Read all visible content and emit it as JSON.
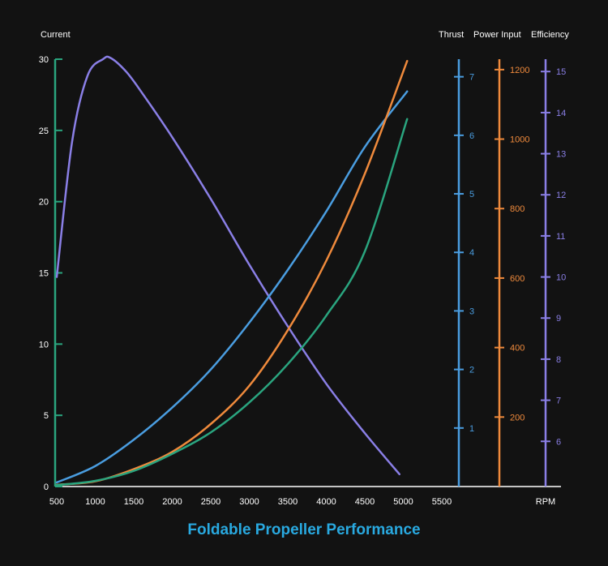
{
  "chart_data": {
    "type": "line",
    "title": "Foldable Propeller Performance",
    "x_label": "RPM",
    "x_ticks": [
      500,
      1000,
      1500,
      2000,
      2500,
      3000,
      3500,
      4000,
      4500,
      5000,
      5500
    ],
    "x_range": [
      500,
      5500
    ],
    "axes": {
      "current": {
        "label": "Current",
        "range": [
          0,
          30
        ],
        "ticks": [
          0,
          5,
          10,
          15,
          20,
          25,
          30
        ],
        "color": "#2aa57f"
      },
      "thrust": {
        "label": "Thrust",
        "range": [
          0,
          7.3
        ],
        "ticks": [
          1,
          2,
          3,
          4,
          5,
          6,
          7
        ],
        "color": "#4a9de0"
      },
      "power": {
        "label": "Power Input",
        "range": [
          0,
          1230
        ],
        "ticks": [
          200,
          400,
          600,
          800,
          1000,
          1200
        ],
        "color": "#ef8a3c"
      },
      "efficiency": {
        "label": "Efficiency",
        "range": [
          4.9,
          15.3
        ],
        "ticks": [
          6,
          7,
          8,
          9,
          10,
          11,
          12,
          13,
          14,
          15
        ],
        "color": "#8a7fe6"
      }
    },
    "series": [
      {
        "name": "Efficiency",
        "axis": "efficiency",
        "color": "#8a7fe6",
        "x": [
          500,
          700,
          900,
          1100,
          1200,
          1400,
          1600,
          2000,
          2500,
          3000,
          3500,
          4000,
          4500,
          4950
        ],
        "y": [
          10.0,
          13.3,
          14.9,
          15.3,
          15.33,
          15.0,
          14.5,
          13.4,
          11.9,
          10.3,
          8.8,
          7.4,
          6.2,
          5.2
        ]
      },
      {
        "name": "Thrust",
        "axis": "thrust",
        "color": "#4a9de0",
        "x": [
          500,
          1000,
          1500,
          2000,
          2500,
          3000,
          3500,
          4000,
          4500,
          5050
        ],
        "y": [
          0.07,
          0.35,
          0.8,
          1.35,
          2.0,
          2.8,
          3.7,
          4.7,
          5.8,
          6.75
        ]
      },
      {
        "name": "Power Input",
        "axis": "power",
        "color": "#ef8a3c",
        "x": [
          500,
          1000,
          1500,
          2000,
          2500,
          3000,
          3500,
          4000,
          4500,
          5050
        ],
        "y": [
          5,
          15,
          50,
          100,
          180,
          290,
          450,
          650,
          900,
          1225
        ]
      },
      {
        "name": "Current",
        "axis": "current",
        "color": "#2aa57f",
        "x": [
          500,
          1000,
          1500,
          2000,
          2500,
          3000,
          3500,
          4000,
          4500,
          5050
        ],
        "y": [
          0.1,
          0.4,
          1.1,
          2.3,
          3.8,
          5.9,
          8.6,
          12.0,
          16.5,
          25.8
        ]
      }
    ],
    "grid": false,
    "legend": "none"
  },
  "colors": {
    "background": "#121212",
    "title": "#29a9e0",
    "axis": "#ffffff"
  }
}
